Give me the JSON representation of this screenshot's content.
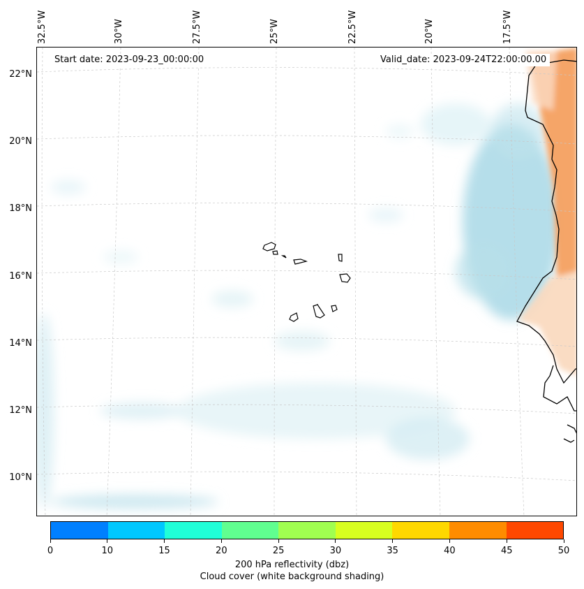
{
  "map": {
    "start_date": "Start date: 2023-09-23_00:00:00",
    "valid_date": "Valid_date: 2023-09-24T22:00:00.00",
    "lon_labels": [
      "32.5°W",
      "30°W",
      "27.5°W",
      "25°W",
      "22.5°W",
      "20°W",
      "17.5°W"
    ],
    "lat_labels": [
      "22°N",
      "20°N",
      "18°N",
      "16°N",
      "14°N",
      "12°N",
      "10°N"
    ],
    "features": [
      "Cape Verde islands",
      "West African coastline",
      "cloud cover shading",
      "reflectivity shading over land"
    ]
  },
  "colorbar": {
    "ticks": [
      "0",
      "10",
      "15",
      "20",
      "25",
      "30",
      "35",
      "40",
      "45",
      "50"
    ],
    "colors": [
      "#0080ff",
      "#00c8ff",
      "#20ffd8",
      "#60ff90",
      "#a0ff50",
      "#d8ff20",
      "#ffd800",
      "#ff8c00",
      "#ff4800"
    ],
    "label_line1": "200 hPa reflectivity (dbz)",
    "label_line2": "Cloud cover (white background shading)"
  },
  "colors": {
    "cloud": "#a8d8e6",
    "land_reflectivity": "#f4a060",
    "grid": "#c8c8c8",
    "coast": "#000000"
  }
}
